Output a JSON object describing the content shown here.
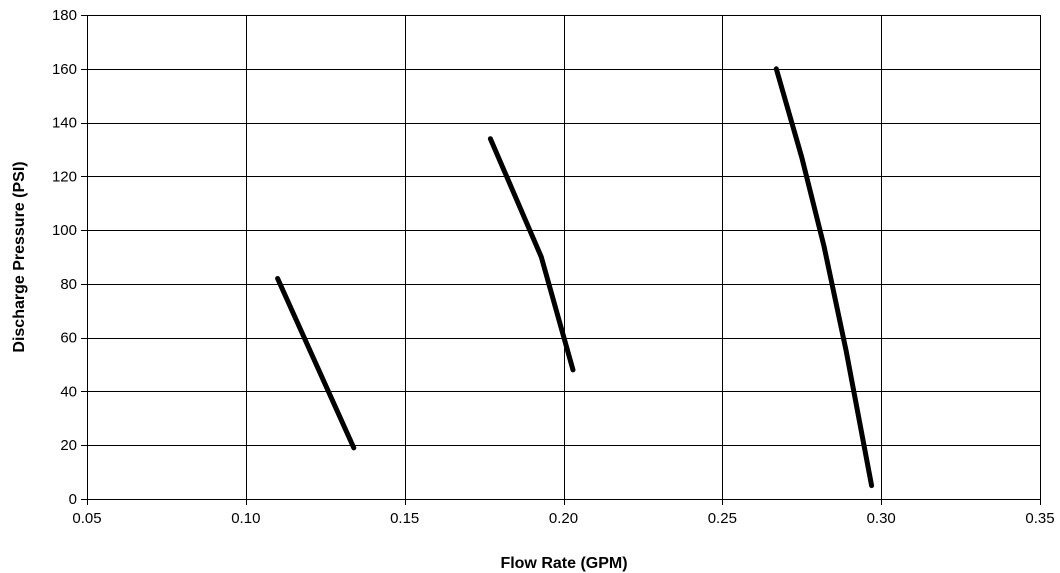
{
  "chart_data": {
    "type": "line",
    "title": "",
    "xlabel": "Flow Rate (GPM)",
    "ylabel": "Discharge Pressure (PSI)",
    "xlim": [
      0.05,
      0.35
    ],
    "ylim": [
      0,
      180
    ],
    "xticks": [
      0.05,
      0.1,
      0.15,
      0.2,
      0.25,
      0.3,
      0.35
    ],
    "yticks": [
      0,
      20,
      40,
      60,
      80,
      100,
      120,
      140,
      160,
      180
    ],
    "xtick_labels": [
      "0.05",
      "0.10",
      "0.15",
      "0.20",
      "0.25",
      "0.30",
      "0.35"
    ],
    "ytick_labels": [
      "0",
      "20",
      "40",
      "60",
      "80",
      "100",
      "120",
      "140",
      "160",
      "180"
    ],
    "grid": true,
    "legend": "none",
    "series": [
      {
        "color": "#000000",
        "x": [
          0.11,
          0.134
        ],
        "y": [
          82,
          19
        ]
      },
      {
        "color": "#000000",
        "x": [
          0.177,
          0.193,
          0.203
        ],
        "y": [
          134,
          90,
          48
        ]
      },
      {
        "color": "#000000",
        "x": [
          0.267,
          0.275,
          0.282,
          0.289,
          0.297
        ],
        "y": [
          160,
          127,
          94,
          55,
          5
        ]
      }
    ]
  }
}
